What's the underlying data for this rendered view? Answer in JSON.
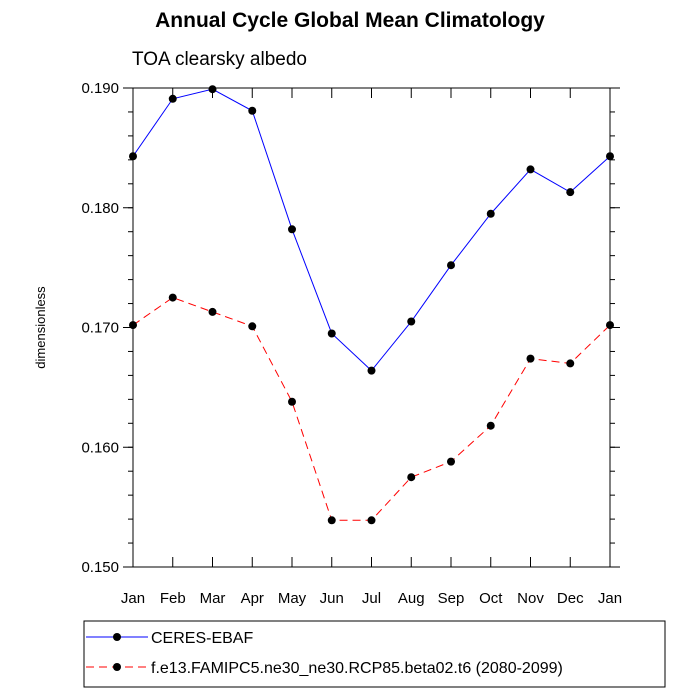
{
  "chart_data": {
    "type": "line",
    "title": "Annual Cycle Global Mean Climatology",
    "subtitle": "TOA clearsky albedo",
    "xlabel": "",
    "ylabel": "dimensionless",
    "ylim": [
      0.15,
      0.19
    ],
    "yticks": [
      0.15,
      0.16,
      0.17,
      0.18,
      0.19
    ],
    "ytick_labels": [
      "0.150",
      "0.160",
      "0.170",
      "0.180",
      "0.190"
    ],
    "y_minor_step": 0.002,
    "categories": [
      "Jan",
      "Feb",
      "Mar",
      "Apr",
      "May",
      "Jun",
      "Jul",
      "Aug",
      "Sep",
      "Oct",
      "Nov",
      "Dec",
      "Jan"
    ],
    "grid": false,
    "legend_position": "bottom-left",
    "series": [
      {
        "name": "CERES-EBAF",
        "color": "#0000ff",
        "dash": "solid",
        "values": [
          0.1843,
          0.1891,
          0.1899,
          0.1881,
          0.1782,
          0.1695,
          0.1664,
          0.1705,
          0.1752,
          0.1795,
          0.1832,
          0.1813,
          0.1843
        ]
      },
      {
        "name": "f.e13.FAMIPC5.ne30_ne30.RCP85.beta02.t6 (2080-2099)",
        "color": "#ff0000",
        "dash": "dashed",
        "values": [
          0.1702,
          0.1725,
          0.1713,
          0.1701,
          0.1638,
          0.1539,
          0.1539,
          0.1575,
          0.1588,
          0.1618,
          0.1674,
          0.167,
          0.1702
        ]
      }
    ]
  }
}
